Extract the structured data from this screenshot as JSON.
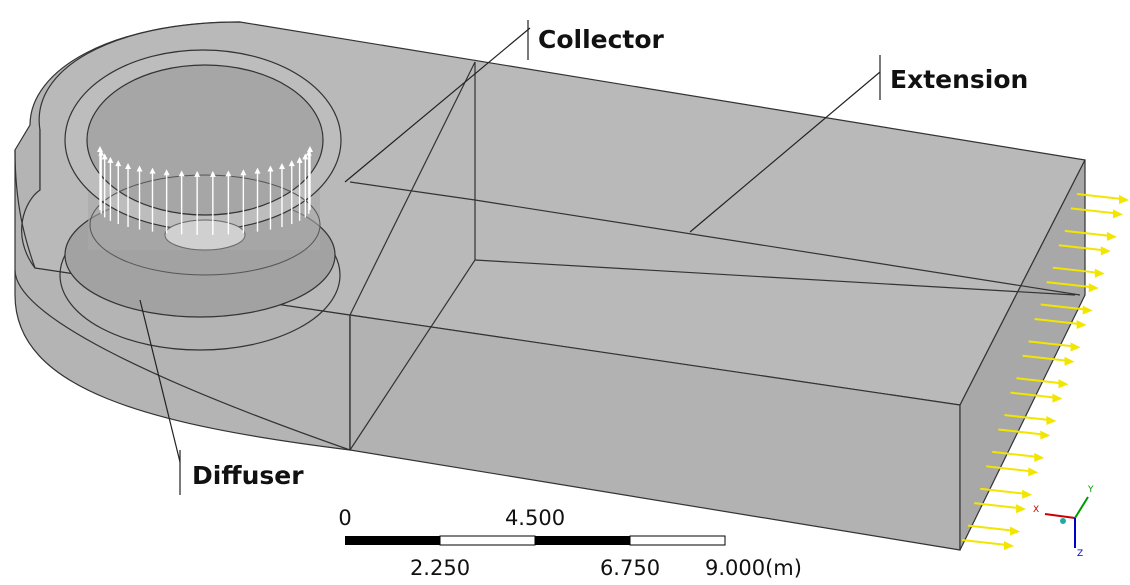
{
  "labels": {
    "collector": "Collector",
    "extension": "Extension",
    "diffuser": "Diffuser"
  },
  "scale_bar": {
    "top": [
      "0",
      "4.500"
    ],
    "bottom": [
      "2.250",
      "6.750",
      "9.000(m)"
    ]
  },
  "triad": {
    "x": "X",
    "y": "Y",
    "z": "Z"
  }
}
